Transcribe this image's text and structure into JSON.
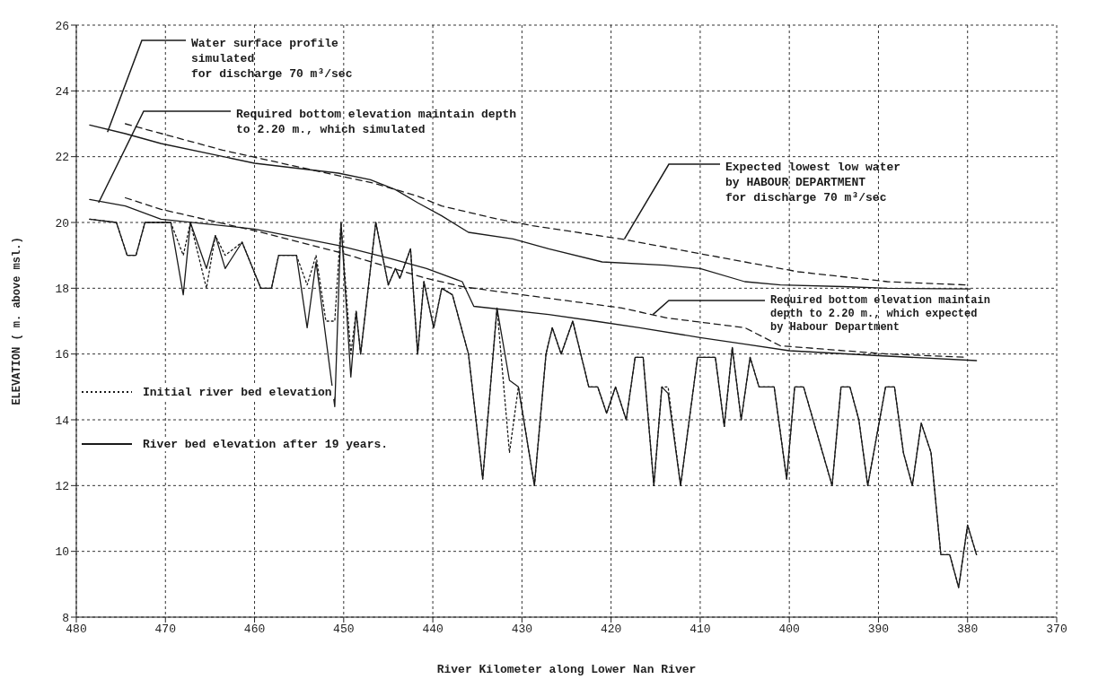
{
  "chart_data": {
    "type": "line",
    "xlabel": "River Kilometer along Lower Nan River",
    "ylabel": "ELEVATION ( m. above msl.)",
    "xlim": [
      480,
      370
    ],
    "xticks": [
      480,
      470,
      460,
      450,
      440,
      430,
      420,
      410,
      400,
      390,
      380,
      370
    ],
    "ylim": [
      8,
      26
    ],
    "yticks": [
      8,
      10,
      12,
      14,
      16,
      18,
      20,
      22,
      24,
      26
    ],
    "grid": true,
    "legend": "left",
    "marker": "none",
    "series": [
      {
        "color": "#1a1a1a",
        "line_style": "solid",
        "x": [
          478.5,
          474.5,
          470.5,
          460,
          450.6,
          447,
          444.2,
          441.7,
          439,
          436,
          431,
          427,
          421,
          414,
          410,
          405,
          401,
          394,
          389,
          379.7
        ],
        "values": [
          22.96,
          22.7,
          22.4,
          21.8,
          21.5,
          21.3,
          21.0,
          20.6,
          20.2,
          19.7,
          19.5,
          19.2,
          18.8,
          18.7,
          18.6,
          18.2,
          18.1,
          18.05,
          18.0,
          17.98
        ]
      },
      {
        "color": "#1a1a1a",
        "line_style": "dashed",
        "x": [
          474.5,
          463.6,
          453.6,
          446.7,
          441.7,
          439,
          432.7,
          428.8,
          418.9,
          409,
          399,
          389,
          380
        ],
        "values": [
          23.0,
          22.2,
          21.6,
          21.2,
          20.8,
          20.5,
          20.1,
          19.9,
          19.5,
          19.0,
          18.5,
          18.2,
          18.1
        ]
      },
      {
        "color": "#1a1a1a",
        "line_style": "solid",
        "x": [
          478.5,
          474.5,
          470.5,
          460,
          450.6,
          444.7,
          440.7,
          436.7,
          435.4,
          427,
          421.8,
          416.8,
          410,
          405,
          400,
          390,
          379
        ],
        "values": [
          20.7,
          20.5,
          20.1,
          19.8,
          19.3,
          18.9,
          18.6,
          18.2,
          17.45,
          17.2,
          17.0,
          16.8,
          16.5,
          16.3,
          16.1,
          15.95,
          15.8
        ]
      },
      {
        "color": "#1a1a1a",
        "line_style": "dashed",
        "x": [
          474.5,
          470.5,
          460,
          450.6,
          445.7,
          440.7,
          436.7,
          432.7,
          418.8,
          413.8,
          405,
          401,
          389,
          380
        ],
        "values": [
          20.75,
          20.4,
          19.75,
          19.1,
          18.7,
          18.3,
          18.05,
          17.9,
          17.4,
          17.1,
          16.8,
          16.25,
          16.0,
          15.9
        ]
      },
      {
        "name": "Initial river bed elevation",
        "color": "#1a1a1a",
        "line_style": "dotted",
        "x": [
          478.5,
          475.5,
          474.3,
          473.3,
          472.3,
          469.4,
          468,
          467.2,
          465.4,
          464.4,
          463.3,
          461.4,
          459.3,
          458.1,
          457.3,
          455.3,
          454.1,
          453.1,
          452,
          451,
          450.3,
          449.2,
          448.6,
          448.1,
          446.4,
          445,
          444.2,
          443.7,
          442.5,
          441.7,
          441,
          439.9,
          439,
          437.8,
          436,
          434.4,
          432.8,
          431.4,
          430.4,
          428.6,
          427.3,
          426.6,
          425.6,
          424.3,
          422.5,
          421.5,
          420.5,
          419.5,
          418.3,
          417.3,
          416.4,
          415.2,
          414.3,
          413.6,
          412.2,
          410.3,
          408.3,
          407.3,
          406.4,
          405.4,
          404.4,
          403.4,
          401.7,
          400.3,
          399.4,
          398.4,
          395.2,
          394.2,
          393.2,
          392.2,
          391.2,
          389.2,
          388.2,
          387.2,
          386.2,
          385.2,
          384.1,
          383,
          382,
          381,
          380,
          379
        ],
        "values": [
          20.1,
          20,
          19,
          19,
          20,
          20,
          19,
          20,
          18,
          19.6,
          19,
          19.4,
          18,
          18,
          19,
          19,
          18.1,
          19,
          17,
          17,
          20,
          16,
          17.3,
          16,
          20,
          18.1,
          18.6,
          18.3,
          19.2,
          16,
          18.2,
          16.8,
          18,
          17.8,
          16,
          12.2,
          17.4,
          13,
          15,
          12,
          16,
          16.8,
          16,
          17,
          15,
          15,
          14.2,
          15,
          14,
          15.9,
          15.9,
          12,
          15,
          15,
          12,
          15.9,
          15.9,
          13.8,
          16.2,
          14,
          15.9,
          15,
          15,
          12.2,
          15,
          15,
          12,
          15,
          15,
          14,
          12,
          15,
          15,
          13,
          12,
          13.9,
          13,
          9.9,
          9.9,
          8.9,
          10.8,
          9.9
        ]
      },
      {
        "name": "River bed elevation after 19 years.",
        "color": "#1a1a1a",
        "line_style": "solid",
        "x": [
          478.5,
          475.5,
          474.3,
          473.3,
          472.3,
          469.4,
          468,
          467.2,
          465.4,
          464.4,
          463.3,
          461.4,
          459.3,
          458.1,
          457.3,
          455.3,
          454.1,
          453.1,
          451,
          450.3,
          449.2,
          448.6,
          448.1,
          446.4,
          445,
          444.2,
          443.7,
          442.5,
          441.7,
          441,
          439.9,
          439,
          437.8,
          436,
          434.4,
          432.8,
          431.4,
          430.4,
          428.6,
          427.3,
          426.6,
          425.6,
          424.3,
          422.5,
          421.5,
          420.5,
          419.5,
          418.3,
          417.3,
          416.4,
          415.2,
          414.3,
          413.6,
          412.2,
          410.3,
          408.3,
          407.3,
          406.4,
          405.4,
          404.4,
          403.4,
          401.7,
          400.3,
          399.4,
          398.4,
          395.2,
          394.2,
          393.2,
          392.2,
          391.2,
          389.2,
          388.2,
          387.2,
          386.2,
          385.2,
          384.1,
          383,
          382,
          381,
          380,
          379
        ],
        "values": [
          20.1,
          20,
          19,
          19,
          20,
          20,
          17.8,
          20,
          18.6,
          19.6,
          18.6,
          19.4,
          18,
          18,
          19,
          19,
          16.8,
          18.8,
          14.4,
          20,
          15.3,
          17.3,
          16,
          20,
          18.1,
          18.6,
          18.3,
          19.2,
          16,
          18.2,
          16.8,
          18,
          17.8,
          16,
          12.2,
          17.4,
          15.2,
          15,
          12,
          16,
          16.8,
          16,
          17,
          15,
          15,
          14.2,
          15,
          14,
          15.9,
          15.9,
          12,
          15,
          14.8,
          12,
          15.9,
          15.9,
          13.8,
          16.2,
          14,
          15.9,
          15,
          15,
          12.2,
          15,
          15,
          12,
          15,
          15,
          14,
          12,
          15,
          15,
          13,
          12,
          13.9,
          13,
          9.9,
          9.9,
          8.9,
          10.8,
          9.9
        ]
      }
    ],
    "annotations": [
      {
        "text": "Water surface profile\nsimulated\nfor discharge  70 m³/sec",
        "x": 476.5,
        "y": 22.75
      },
      {
        "text": "Required bottom elevation maintain depth\nto 2.20 m., which simulated",
        "x": 477.5,
        "y": 20.6
      },
      {
        "text": "Expected lowest low water\nby HABOUR DEPARTMENT\nfor discharge 70 m³/sec",
        "x": 418.5,
        "y": 19.5
      },
      {
        "text": "Required bottom elevation maintain\ndepth to 2.20 m., which expected\nby Habour Department",
        "x": 415.3,
        "y": 17.2
      }
    ]
  }
}
